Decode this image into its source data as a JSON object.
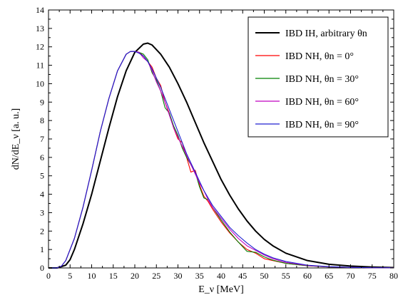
{
  "chart_data": {
    "type": "line",
    "xlabel": "E_ν [MeV]",
    "ylabel": "dN/dE_ν [a. u.]",
    "xlim": [
      0,
      80
    ],
    "ylim": [
      0,
      14
    ],
    "xticks": [
      0,
      5,
      10,
      15,
      20,
      25,
      30,
      35,
      40,
      45,
      50,
      55,
      60,
      65,
      70,
      75,
      80
    ],
    "yticks": [
      0,
      1,
      2,
      3,
      4,
      5,
      6,
      7,
      8,
      9,
      10,
      11,
      12,
      13,
      14
    ],
    "grid": false,
    "legend_position": "top-right",
    "series": [
      {
        "name": "IBD IH,  arbitrary θn",
        "color": "#000000",
        "x": [
          0,
          2,
          4,
          5,
          6,
          8,
          10,
          12,
          14,
          16,
          18,
          20,
          22,
          23,
          24,
          26,
          28,
          30,
          32,
          34,
          36,
          38,
          40,
          42,
          44,
          46,
          48,
          50,
          52,
          55,
          60,
          65,
          70,
          75,
          80
        ],
        "y": [
          0,
          0,
          0.15,
          0.45,
          1.0,
          2.4,
          4.0,
          5.8,
          7.6,
          9.3,
          10.7,
          11.7,
          12.15,
          12.2,
          12.1,
          11.6,
          10.9,
          10.0,
          9.0,
          7.9,
          6.8,
          5.8,
          4.8,
          3.95,
          3.2,
          2.55,
          2.0,
          1.55,
          1.2,
          0.8,
          0.4,
          0.2,
          0.1,
          0.05,
          0.02
        ]
      },
      {
        "name": "IBD NH, θn =   0°",
        "color": "#ff0000",
        "x": [
          0,
          2,
          3,
          4,
          6,
          8,
          10,
          12,
          14,
          16,
          18,
          19,
          20,
          21,
          22,
          23,
          24,
          25,
          26,
          27,
          28,
          29,
          30,
          31,
          32,
          33,
          34,
          35,
          36,
          37,
          38,
          40,
          42,
          44,
          46,
          48,
          50,
          52,
          55,
          60,
          65,
          70,
          75,
          80
        ],
        "y": [
          0,
          0,
          0.1,
          0.4,
          1.6,
          3.3,
          5.3,
          7.4,
          9.2,
          10.7,
          11.6,
          11.75,
          11.75,
          11.7,
          11.5,
          11.2,
          10.9,
          10.3,
          9.9,
          9.0,
          8.4,
          7.6,
          7.0,
          6.8,
          6.0,
          5.2,
          5.3,
          4.5,
          3.9,
          3.6,
          3.2,
          2.5,
          1.9,
          1.4,
          1.0,
          0.8,
          0.5,
          0.4,
          0.25,
          0.12,
          0.05,
          0.03,
          0.01,
          0.01
        ]
      },
      {
        "name": "IBD NH, θn = 30°",
        "color": "#008000",
        "x": [
          0,
          2,
          3,
          4,
          6,
          8,
          10,
          12,
          14,
          16,
          18,
          19,
          20,
          21,
          22,
          23,
          24,
          25,
          26,
          27,
          28,
          29,
          30,
          31,
          32,
          33,
          34,
          35,
          36,
          37,
          38,
          40,
          42,
          44,
          46,
          48,
          50,
          52,
          55,
          60,
          65,
          70,
          75,
          80
        ],
        "y": [
          0,
          0,
          0.1,
          0.4,
          1.6,
          3.3,
          5.3,
          7.4,
          9.2,
          10.7,
          11.6,
          11.75,
          11.75,
          11.7,
          11.6,
          11.3,
          10.6,
          10.2,
          9.6,
          8.7,
          8.4,
          7.7,
          7.2,
          6.5,
          6.0,
          5.6,
          5.2,
          4.4,
          3.8,
          3.7,
          3.3,
          2.6,
          1.95,
          1.4,
          0.9,
          0.85,
          0.6,
          0.42,
          0.25,
          0.12,
          0.05,
          0.03,
          0.01,
          0.01
        ]
      },
      {
        "name": "IBD NH, θn = 60°",
        "color": "#c000c0",
        "x": [
          0,
          2,
          3,
          4,
          6,
          8,
          10,
          12,
          14,
          16,
          18,
          19,
          20,
          21,
          22,
          23,
          24,
          25,
          26,
          27,
          28,
          29,
          30,
          31,
          32,
          33,
          34,
          35,
          36,
          37,
          38,
          40,
          42,
          44,
          46,
          48,
          50,
          52,
          55,
          60,
          65,
          70,
          75,
          80
        ],
        "y": [
          0,
          0,
          0.1,
          0.4,
          1.6,
          3.3,
          5.3,
          7.4,
          9.2,
          10.7,
          11.6,
          11.75,
          11.75,
          11.7,
          11.4,
          11.2,
          10.7,
          10.1,
          9.6,
          9.0,
          8.3,
          7.6,
          7.1,
          6.6,
          6.1,
          5.6,
          5.1,
          4.6,
          4.2,
          3.7,
          3.3,
          2.7,
          2.1,
          1.6,
          1.2,
          0.95,
          0.7,
          0.5,
          0.3,
          0.13,
          0.06,
          0.03,
          0.01,
          0.01
        ]
      },
      {
        "name": "IBD NH, θn = 90°",
        "color": "#2020d0",
        "x": [
          0,
          2,
          3,
          4,
          6,
          8,
          10,
          12,
          14,
          16,
          18,
          19,
          20,
          21,
          22,
          23,
          24,
          25,
          26,
          27,
          28,
          29,
          30,
          31,
          32,
          33,
          34,
          35,
          36,
          37,
          38,
          40,
          42,
          44,
          46,
          48,
          50,
          52,
          55,
          60,
          65,
          70,
          75,
          80
        ],
        "y": [
          0,
          0,
          0.1,
          0.4,
          1.6,
          3.3,
          5.3,
          7.4,
          9.2,
          10.7,
          11.6,
          11.75,
          11.75,
          11.65,
          11.5,
          11.2,
          10.8,
          10.3,
          9.8,
          9.2,
          8.6,
          8.0,
          7.4,
          6.8,
          6.2,
          5.7,
          5.2,
          4.7,
          4.2,
          3.8,
          3.4,
          2.8,
          2.2,
          1.75,
          1.35,
          1.0,
          0.75,
          0.55,
          0.35,
          0.15,
          0.07,
          0.03,
          0.01,
          0.01
        ]
      }
    ]
  }
}
